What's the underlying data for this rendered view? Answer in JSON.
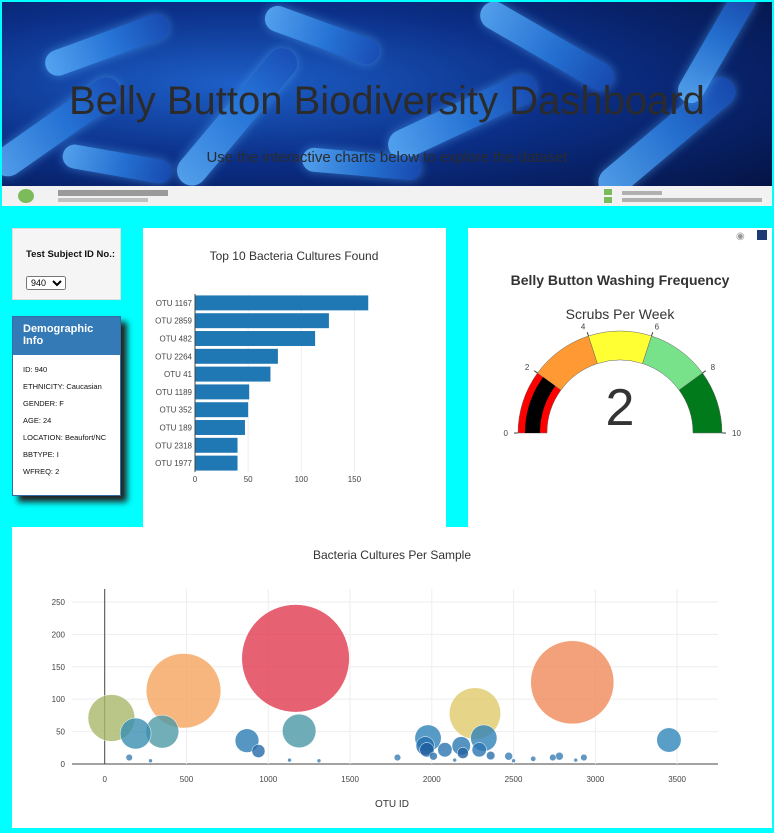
{
  "header": {
    "title": "Belly Button Biodiversity Dashboard",
    "subtitle": "Use the interactive charts below to explore the dataset"
  },
  "selector": {
    "label": "Test Subject ID No.:",
    "selected": "940",
    "options": [
      "940"
    ]
  },
  "demographic": {
    "title": "Demographic Info",
    "items": [
      "ID: 940",
      "ETHNICITY: Caucasian",
      "GENDER: F",
      "AGE: 24",
      "LOCATION: Beaufort/NC",
      "BBTYPE: I",
      "WFREQ: 2"
    ]
  },
  "colors": {
    "page_bg": "#00ffff",
    "bar": "#1f77b4",
    "panel_header": "#337ab7"
  },
  "chart_data": [
    {
      "type": "bar",
      "orientation": "horizontal",
      "title": "Top 10 Bacteria Cultures Found",
      "categories": [
        "OTU 1167",
        "OTU 2859",
        "OTU 482",
        "OTU 2264",
        "OTU 41",
        "OTU 1189",
        "OTU 352",
        "OTU 189",
        "OTU 2318",
        "OTU 1977"
      ],
      "values": [
        163,
        126,
        113,
        78,
        71,
        51,
        50,
        47,
        40,
        40
      ],
      "xlim": [
        0,
        175
      ],
      "xticks": [
        0,
        50,
        100,
        150
      ]
    },
    {
      "type": "gauge",
      "title": "Belly Button Washing Frequency",
      "subtitle": "Scrubs Per Week",
      "value": 2,
      "range": [
        0,
        10
      ],
      "tick_labels": [
        "0",
        "2",
        "4",
        "6",
        "8",
        "10"
      ],
      "steps": [
        {
          "range": [
            0,
            2
          ],
          "color": "#ff0000"
        },
        {
          "range": [
            2,
            4
          ],
          "color": "#ff9933"
        },
        {
          "range": [
            4,
            6
          ],
          "color": "#ffff33"
        },
        {
          "range": [
            6,
            8
          ],
          "color": "#77e28a"
        },
        {
          "range": [
            8,
            10
          ],
          "color": "#007a1a"
        }
      ],
      "bar_color": "#000000"
    },
    {
      "type": "scatter",
      "title": "Bacteria Cultures Per Sample",
      "xlabel": "OTU ID",
      "xlim": [
        -200,
        3750
      ],
      "ylim": [
        0,
        270
      ],
      "xticks": [
        0,
        500,
        1000,
        1500,
        2000,
        2500,
        3000,
        3500
      ],
      "yticks": [
        0,
        50,
        100,
        150,
        200,
        250
      ],
      "points": [
        {
          "x": 1167,
          "y": 163,
          "color": "#e03a4e"
        },
        {
          "x": 2859,
          "y": 126,
          "color": "#f08a5a"
        },
        {
          "x": 482,
          "y": 113,
          "color": "#f5a45e"
        },
        {
          "x": 2264,
          "y": 78,
          "color": "#e0cb6c"
        },
        {
          "x": 41,
          "y": 71,
          "color": "#a8b86a"
        },
        {
          "x": 1189,
          "y": 51,
          "color": "#4a98a6"
        },
        {
          "x": 352,
          "y": 50,
          "color": "#4e9aa6"
        },
        {
          "x": 189,
          "y": 47,
          "color": "#3a8fb0"
        },
        {
          "x": 2318,
          "y": 40,
          "color": "#2e82b8"
        },
        {
          "x": 1977,
          "y": 40,
          "color": "#2e82b8"
        },
        {
          "x": 3450,
          "y": 37,
          "color": "#2e86b8"
        },
        {
          "x": 870,
          "y": 36,
          "color": "#2a7cb4"
        },
        {
          "x": 1960,
          "y": 28,
          "color": "#246fae"
        },
        {
          "x": 2180,
          "y": 28,
          "color": "#2a78b2"
        },
        {
          "x": 1970,
          "y": 22,
          "color": "#1f5f9e"
        },
        {
          "x": 2290,
          "y": 22,
          "color": "#2a74b0"
        },
        {
          "x": 2080,
          "y": 22,
          "color": "#2a74b0"
        },
        {
          "x": 940,
          "y": 20,
          "color": "#256aa8"
        },
        {
          "x": 2190,
          "y": 17,
          "color": "#22619f"
        },
        {
          "x": 2360,
          "y": 13,
          "color": "#2a70ac"
        },
        {
          "x": 2010,
          "y": 12,
          "color": "#2a70ac"
        },
        {
          "x": 2470,
          "y": 12,
          "color": "#3a7eb4"
        },
        {
          "x": 1790,
          "y": 10,
          "color": "#3a7eb4"
        },
        {
          "x": 2740,
          "y": 10,
          "color": "#3a7eb4"
        },
        {
          "x": 2930,
          "y": 10,
          "color": "#3a7eb4"
        },
        {
          "x": 2780,
          "y": 12,
          "color": "#3a7eb4"
        },
        {
          "x": 150,
          "y": 10,
          "color": "#3a7eb4"
        },
        {
          "x": 2620,
          "y": 8,
          "color": "#3a7eb4"
        },
        {
          "x": 1130,
          "y": 6,
          "color": "#3a7eb4"
        },
        {
          "x": 1310,
          "y": 5,
          "color": "#3a7eb4"
        },
        {
          "x": 2140,
          "y": 6,
          "color": "#3a7eb4"
        },
        {
          "x": 2500,
          "y": 5,
          "color": "#3a7eb4"
        },
        {
          "x": 2880,
          "y": 6,
          "color": "#3a7eb4"
        },
        {
          "x": 280,
          "y": 5,
          "color": "#3a7eb4"
        }
      ]
    }
  ]
}
